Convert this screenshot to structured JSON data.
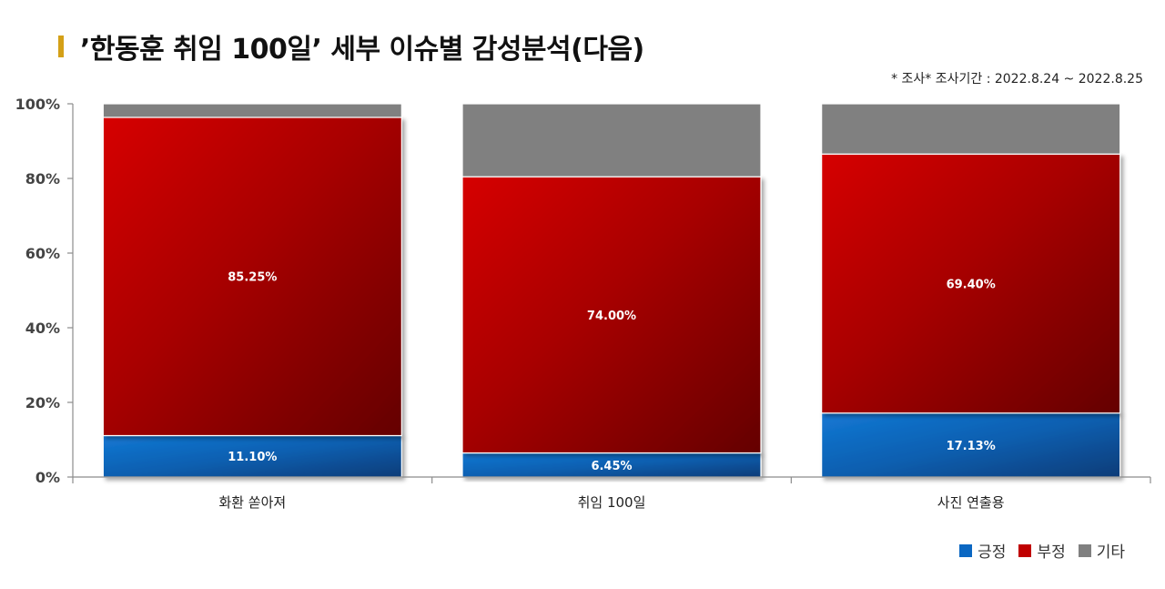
{
  "title": "’한동훈 취임 100일’ 세부 이슈별 감성분석(다음)",
  "note": "* 조사* 조사기간 : 2022.8.24 ~ 2022.8.25",
  "colors": {
    "positive": "#0b67c2",
    "negative": "#c00000",
    "other": "#808080",
    "accent": "#d4a017"
  },
  "chart_data": {
    "type": "bar",
    "stacked": true,
    "normalized": true,
    "categories": [
      "화환 쏟아져",
      "취임 100일",
      "사진 연출용"
    ],
    "series": [
      {
        "name": "긍정",
        "values": [
          11.1,
          6.45,
          17.13
        ],
        "labels": [
          "11.10%",
          "6.45%",
          "17.13%"
        ]
      },
      {
        "name": "부정",
        "values": [
          85.25,
          74.0,
          69.4
        ],
        "labels": [
          "85.25%",
          "74.00%",
          "69.40%"
        ]
      },
      {
        "name": "기타",
        "values": [
          3.65,
          19.55,
          13.47
        ],
        "labels": [
          "",
          "",
          ""
        ]
      }
    ],
    "yticks": [
      "0%",
      "20%",
      "40%",
      "60%",
      "80%",
      "100%"
    ],
    "ylim": [
      0,
      100
    ],
    "grid": false,
    "legend_position": "bottom-right"
  }
}
